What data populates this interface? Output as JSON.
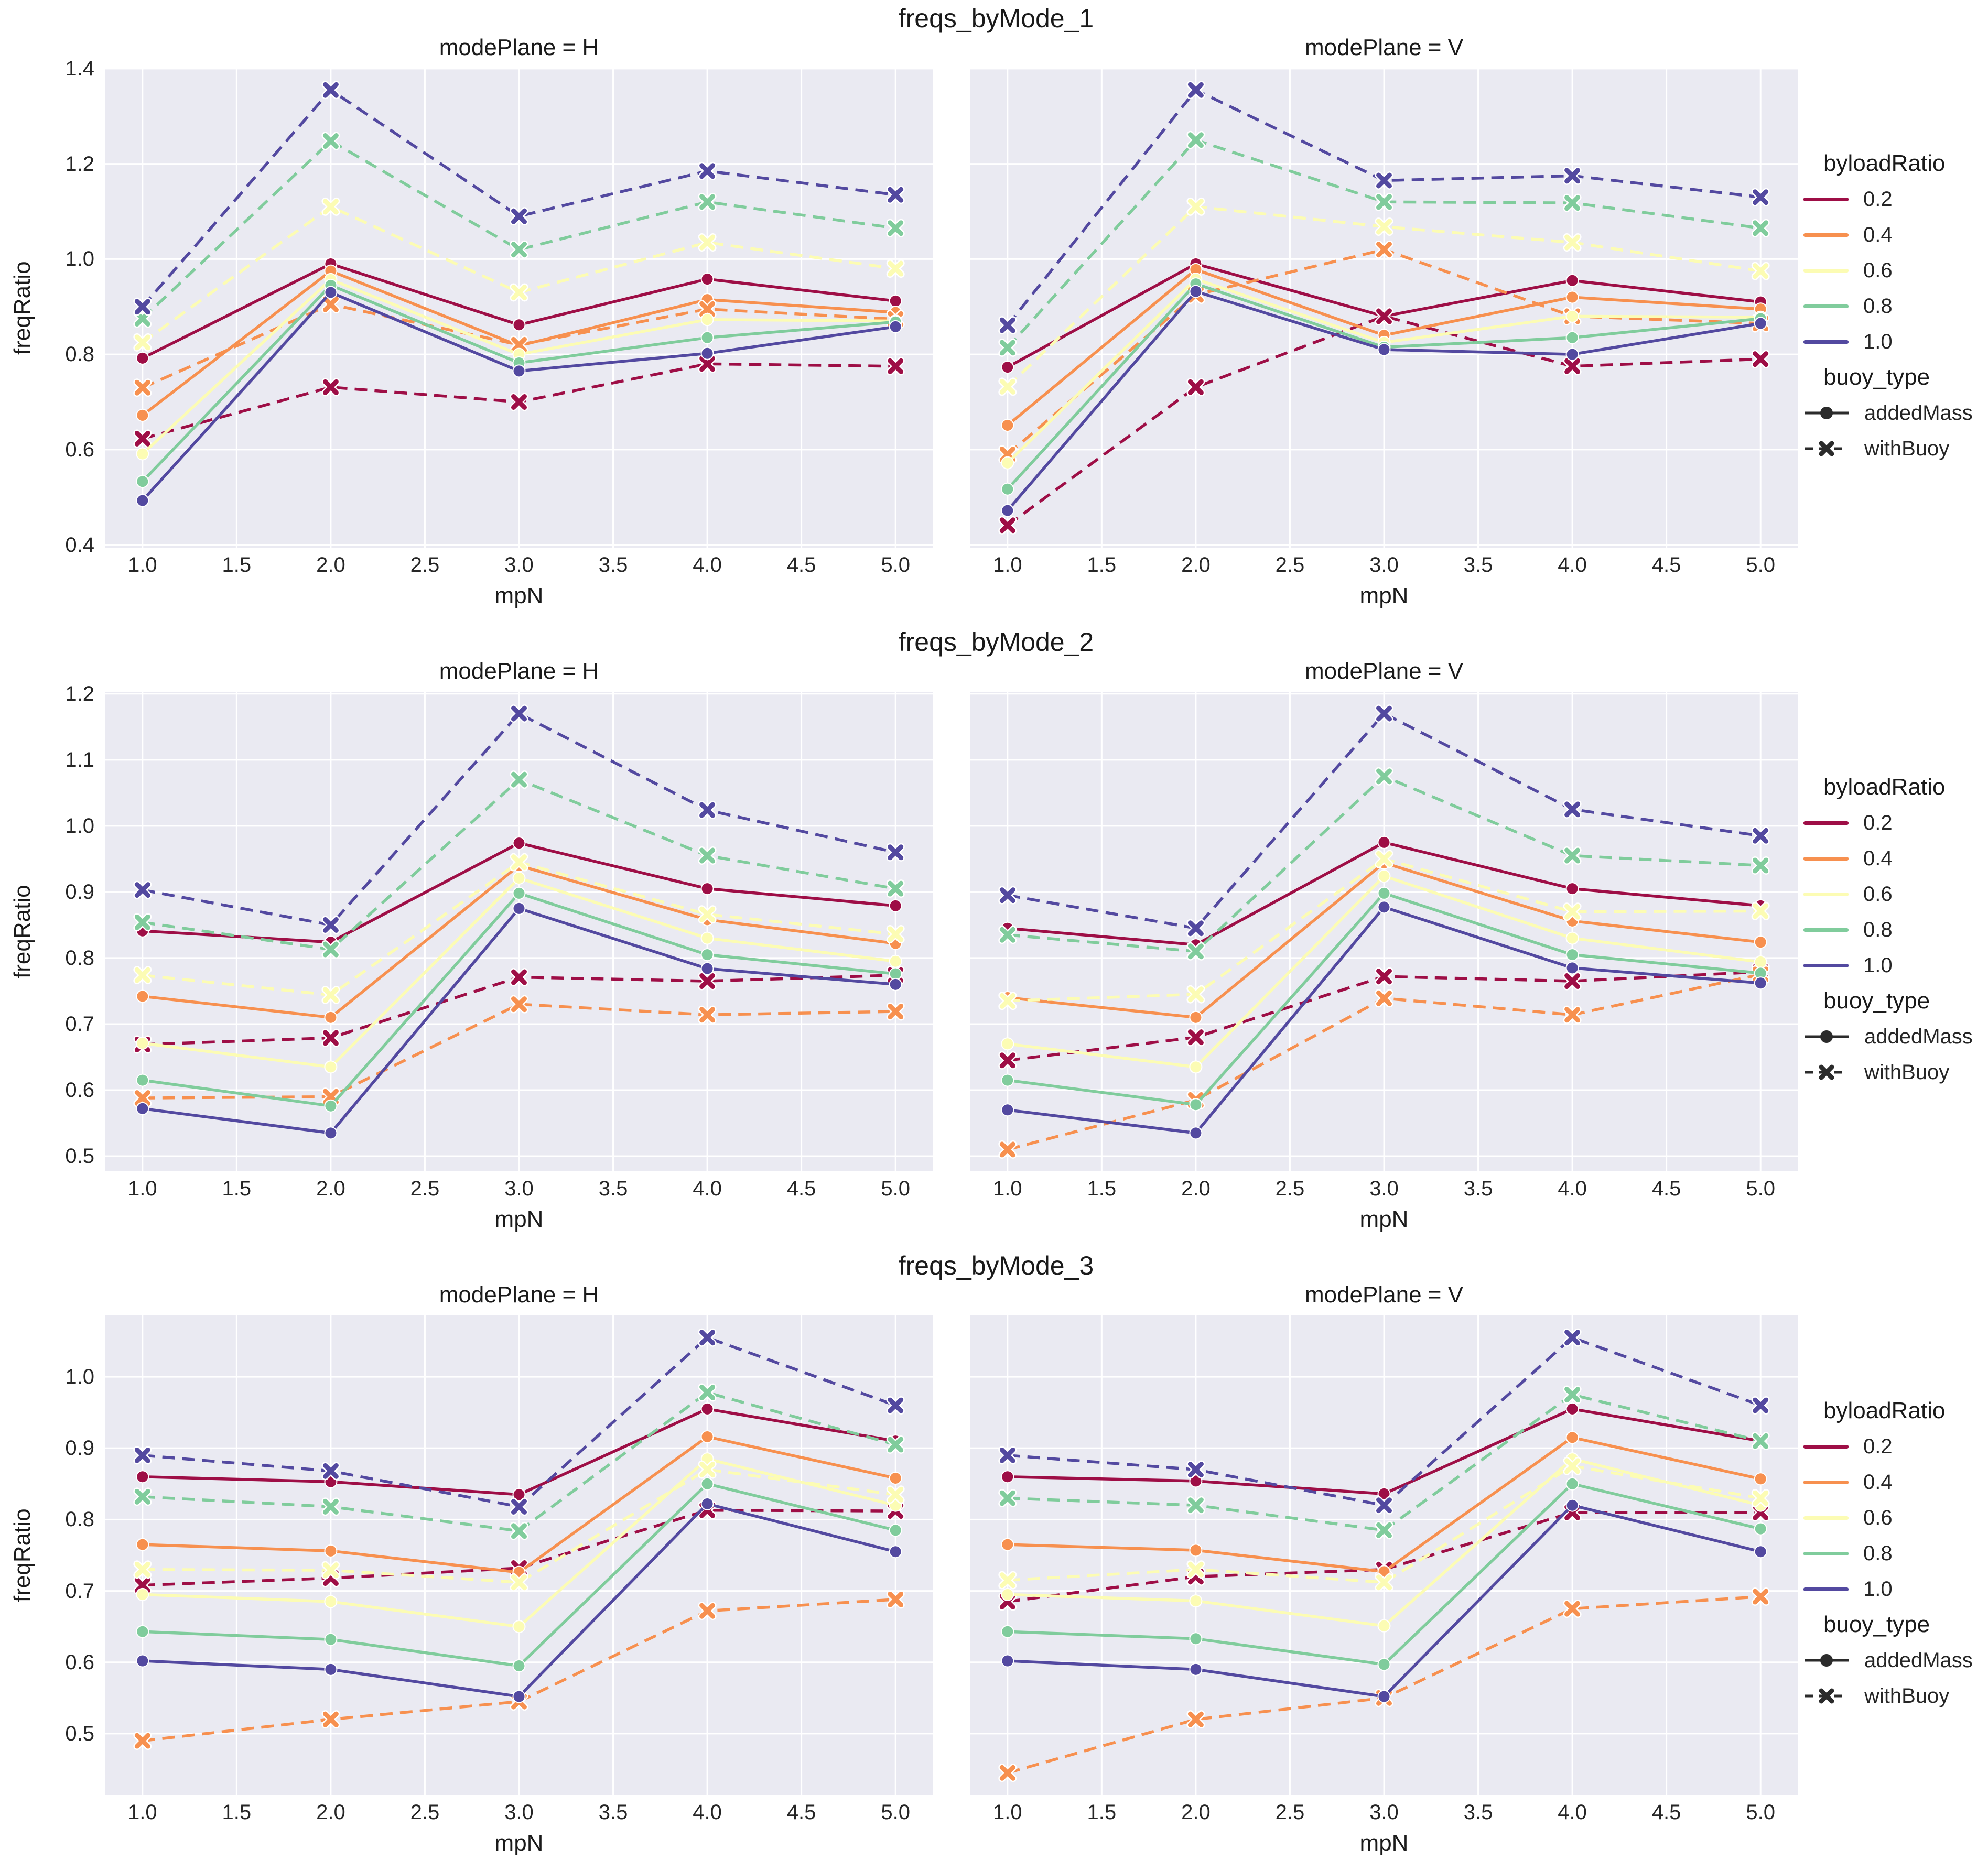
{
  "axes": {
    "xlabel": "mpN",
    "ylabel": "freqRatio"
  },
  "colors": {
    "0.2": "#9e0e46",
    "0.4": "#f7904f",
    "0.6": "#fcfcb4",
    "0.8": "#80cc9c",
    "1.0": "#5349a0",
    "plot_background": "#eaeaf2",
    "gridline": "#ffffff",
    "legend_line": "#2b2b2b",
    "text": "#262626"
  },
  "legend": {
    "ratio_title": "byloadRatio",
    "ratios": [
      {
        "label": "0.2",
        "color": "#9e0e46"
      },
      {
        "label": "0.4",
        "color": "#f7904f"
      },
      {
        "label": "0.6",
        "color": "#fcfcb4"
      },
      {
        "label": "0.8",
        "color": "#80cc9c"
      },
      {
        "label": "1.0",
        "color": "#5349a0"
      }
    ],
    "type_title": "buoy_type",
    "types": [
      {
        "label": "addedMass",
        "line": "solid",
        "marker": "circle"
      },
      {
        "label": "withBuoy",
        "line": "dashed",
        "marker": "x"
      }
    ]
  },
  "chart_data": [
    {
      "type": "line",
      "title": "freqs_byMode_1",
      "xlabel": "mpN",
      "ylabel": "freqRatio",
      "x": [
        1.0,
        2.0,
        3.0,
        4.0,
        5.0
      ],
      "xlim": [
        0.8,
        5.2
      ],
      "xticks": [
        1.0,
        1.5,
        2.0,
        2.5,
        3.0,
        3.5,
        4.0,
        4.5,
        5.0
      ],
      "ylim": [
        0.394,
        1.401
      ],
      "yticks": [
        0.4,
        0.6,
        0.8,
        1.0,
        1.2,
        1.4
      ],
      "grid": true,
      "facets": [
        {
          "label": "modePlane = H",
          "series": [
            {
              "byloadRatio": "0.2",
              "buoy_type": "addedMass",
              "values": [
                0.792,
                0.99,
                0.862,
                0.958,
                0.912
              ]
            },
            {
              "byloadRatio": "0.4",
              "buoy_type": "addedMass",
              "values": [
                0.672,
                0.975,
                0.818,
                0.915,
                0.888
              ]
            },
            {
              "byloadRatio": "0.6",
              "buoy_type": "addedMass",
              "values": [
                0.591,
                0.957,
                0.8,
                0.873,
                0.87
              ]
            },
            {
              "byloadRatio": "0.8",
              "buoy_type": "addedMass",
              "values": [
                0.533,
                0.945,
                0.782,
                0.835,
                0.868
              ]
            },
            {
              "byloadRatio": "1.0",
              "buoy_type": "addedMass",
              "values": [
                0.493,
                0.93,
                0.765,
                0.802,
                0.858
              ]
            },
            {
              "byloadRatio": "0.2",
              "buoy_type": "withBuoy",
              "values": [
                0.623,
                0.731,
                0.7,
                0.78,
                0.775
              ]
            },
            {
              "byloadRatio": "0.4",
              "buoy_type": "withBuoy",
              "values": [
                0.73,
                0.905,
                0.82,
                0.895,
                0.874
              ]
            },
            {
              "byloadRatio": "0.6",
              "buoy_type": "withBuoy",
              "values": [
                0.825,
                1.11,
                0.93,
                1.035,
                0.98
              ]
            },
            {
              "byloadRatio": "0.8",
              "buoy_type": "withBuoy",
              "values": [
                0.875,
                1.248,
                1.02,
                1.12,
                1.065
              ]
            },
            {
              "byloadRatio": "1.0",
              "buoy_type": "withBuoy",
              "values": [
                0.9,
                1.355,
                1.09,
                1.185,
                1.135
              ]
            }
          ]
        },
        {
          "label": "modePlane = V",
          "series": [
            {
              "byloadRatio": "0.2",
              "buoy_type": "addedMass",
              "values": [
                0.773,
                0.99,
                0.88,
                0.955,
                0.91
              ]
            },
            {
              "byloadRatio": "0.4",
              "buoy_type": "addedMass",
              "values": [
                0.651,
                0.978,
                0.84,
                0.92,
                0.895
              ]
            },
            {
              "byloadRatio": "0.6",
              "buoy_type": "addedMass",
              "values": [
                0.572,
                0.958,
                0.825,
                0.88,
                0.878
              ]
            },
            {
              "byloadRatio": "0.8",
              "buoy_type": "addedMass",
              "values": [
                0.517,
                0.948,
                0.815,
                0.835,
                0.875
              ]
            },
            {
              "byloadRatio": "1.0",
              "buoy_type": "addedMass",
              "values": [
                0.472,
                0.932,
                0.81,
                0.8,
                0.865
              ]
            },
            {
              "byloadRatio": "0.2",
              "buoy_type": "withBuoy",
              "values": [
                0.441,
                0.731,
                0.88,
                0.775,
                0.79
              ]
            },
            {
              "byloadRatio": "0.4",
              "buoy_type": "withBuoy",
              "values": [
                0.59,
                0.925,
                1.02,
                0.88,
                0.865
              ]
            },
            {
              "byloadRatio": "0.6",
              "buoy_type": "withBuoy",
              "values": [
                0.732,
                1.11,
                1.068,
                1.035,
                0.975
              ]
            },
            {
              "byloadRatio": "0.8",
              "buoy_type": "withBuoy",
              "values": [
                0.814,
                1.25,
                1.12,
                1.118,
                1.065
              ]
            },
            {
              "byloadRatio": "1.0",
              "buoy_type": "withBuoy",
              "values": [
                0.861,
                1.355,
                1.165,
                1.175,
                1.13
              ]
            }
          ]
        }
      ]
    },
    {
      "type": "line",
      "title": "freqs_byMode_2",
      "xlabel": "mpN",
      "ylabel": "freqRatio",
      "x": [
        1.0,
        2.0,
        3.0,
        4.0,
        5.0
      ],
      "xlim": [
        0.8,
        5.2
      ],
      "xticks": [
        1.0,
        1.5,
        2.0,
        2.5,
        3.0,
        3.5,
        4.0,
        4.5,
        5.0
      ],
      "ylim": [
        0.477,
        1.203
      ],
      "yticks": [
        0.5,
        0.6,
        0.7,
        0.8,
        0.9,
        1.0,
        1.1,
        1.2
      ],
      "grid": true,
      "facets": [
        {
          "label": "modePlane = H",
          "series": [
            {
              "byloadRatio": "0.2",
              "buoy_type": "addedMass",
              "values": [
                0.841,
                0.824,
                0.974,
                0.905,
                0.879
              ]
            },
            {
              "byloadRatio": "0.4",
              "buoy_type": "addedMass",
              "values": [
                0.742,
                0.71,
                0.94,
                0.858,
                0.822
              ]
            },
            {
              "byloadRatio": "0.6",
              "buoy_type": "addedMass",
              "values": [
                0.671,
                0.635,
                0.921,
                0.83,
                0.795
              ]
            },
            {
              "byloadRatio": "0.8",
              "buoy_type": "addedMass",
              "values": [
                0.615,
                0.576,
                0.898,
                0.805,
                0.776
              ]
            },
            {
              "byloadRatio": "1.0",
              "buoy_type": "addedMass",
              "values": [
                0.572,
                0.535,
                0.875,
                0.784,
                0.76
              ]
            },
            {
              "byloadRatio": "0.2",
              "buoy_type": "withBuoy",
              "values": [
                0.669,
                0.679,
                0.771,
                0.765,
                0.774
              ]
            },
            {
              "byloadRatio": "0.4",
              "buoy_type": "withBuoy",
              "values": [
                0.588,
                0.59,
                0.73,
                0.714,
                0.719
              ]
            },
            {
              "byloadRatio": "0.6",
              "buoy_type": "withBuoy",
              "values": [
                0.774,
                0.744,
                0.945,
                0.866,
                0.836
              ]
            },
            {
              "byloadRatio": "0.8",
              "buoy_type": "withBuoy",
              "values": [
                0.854,
                0.813,
                1.07,
                0.955,
                0.905
              ]
            },
            {
              "byloadRatio": "1.0",
              "buoy_type": "withBuoy",
              "values": [
                0.903,
                0.85,
                1.17,
                1.024,
                0.96
              ]
            }
          ]
        },
        {
          "label": "modePlane = V",
          "series": [
            {
              "byloadRatio": "0.2",
              "buoy_type": "addedMass",
              "values": [
                0.845,
                0.82,
                0.975,
                0.905,
                0.879
              ]
            },
            {
              "byloadRatio": "0.4",
              "buoy_type": "addedMass",
              "values": [
                0.74,
                0.71,
                0.944,
                0.856,
                0.824
              ]
            },
            {
              "byloadRatio": "0.6",
              "buoy_type": "addedMass",
              "values": [
                0.67,
                0.635,
                0.924,
                0.83,
                0.794
              ]
            },
            {
              "byloadRatio": "0.8",
              "buoy_type": "addedMass",
              "values": [
                0.615,
                0.578,
                0.898,
                0.805,
                0.777
              ]
            },
            {
              "byloadRatio": "1.0",
              "buoy_type": "addedMass",
              "values": [
                0.57,
                0.535,
                0.877,
                0.785,
                0.762
              ]
            },
            {
              "byloadRatio": "0.2",
              "buoy_type": "withBuoy",
              "values": [
                0.645,
                0.68,
                0.772,
                0.765,
                0.779
              ]
            },
            {
              "byloadRatio": "0.4",
              "buoy_type": "withBuoy",
              "values": [
                0.51,
                0.585,
                0.739,
                0.714,
                0.775
              ]
            },
            {
              "byloadRatio": "0.6",
              "buoy_type": "withBuoy",
              "values": [
                0.735,
                0.745,
                0.95,
                0.87,
                0.871
              ]
            },
            {
              "byloadRatio": "0.8",
              "buoy_type": "withBuoy",
              "values": [
                0.835,
                0.81,
                1.075,
                0.955,
                0.94
              ]
            },
            {
              "byloadRatio": "1.0",
              "buoy_type": "withBuoy",
              "values": [
                0.895,
                0.845,
                1.17,
                1.025,
                0.985
              ]
            }
          ]
        }
      ]
    },
    {
      "type": "line",
      "title": "freqs_byMode_3",
      "xlabel": "mpN",
      "ylabel": "freqRatio",
      "x": [
        1.0,
        2.0,
        3.0,
        4.0,
        5.0
      ],
      "xlim": [
        0.8,
        5.2
      ],
      "xticks": [
        1.0,
        1.5,
        2.0,
        2.5,
        3.0,
        3.5,
        4.0,
        4.5,
        5.0
      ],
      "ylim": [
        0.414,
        1.086
      ],
      "yticks": [
        0.5,
        0.6,
        0.7,
        0.8,
        0.9,
        1.0
      ],
      "grid": true,
      "facets": [
        {
          "label": "modePlane = H",
          "series": [
            {
              "byloadRatio": "0.2",
              "buoy_type": "addedMass",
              "values": [
                0.86,
                0.853,
                0.835,
                0.955,
                0.91
              ]
            },
            {
              "byloadRatio": "0.4",
              "buoy_type": "addedMass",
              "values": [
                0.765,
                0.756,
                0.726,
                0.916,
                0.858
              ]
            },
            {
              "byloadRatio": "0.6",
              "buoy_type": "addedMass",
              "values": [
                0.695,
                0.685,
                0.65,
                0.885,
                0.82
              ]
            },
            {
              "byloadRatio": "0.8",
              "buoy_type": "addedMass",
              "values": [
                0.643,
                0.632,
                0.595,
                0.85,
                0.785
              ]
            },
            {
              "byloadRatio": "1.0",
              "buoy_type": "addedMass",
              "values": [
                0.602,
                0.59,
                0.552,
                0.822,
                0.755
              ]
            },
            {
              "byloadRatio": "0.2",
              "buoy_type": "withBuoy",
              "values": [
                0.708,
                0.718,
                0.732,
                0.813,
                0.812
              ]
            },
            {
              "byloadRatio": "0.4",
              "buoy_type": "withBuoy",
              "values": [
                0.49,
                0.52,
                0.545,
                0.672,
                0.688
              ]
            },
            {
              "byloadRatio": "0.6",
              "buoy_type": "withBuoy",
              "values": [
                0.73,
                0.729,
                0.712,
                0.87,
                0.835
              ]
            },
            {
              "byloadRatio": "0.8",
              "buoy_type": "withBuoy",
              "values": [
                0.832,
                0.818,
                0.784,
                0.978,
                0.905
              ]
            },
            {
              "byloadRatio": "1.0",
              "buoy_type": "withBuoy",
              "values": [
                0.89,
                0.868,
                0.818,
                1.055,
                0.96
              ]
            }
          ]
        },
        {
          "label": "modePlane = V",
          "series": [
            {
              "byloadRatio": "0.2",
              "buoy_type": "addedMass",
              "values": [
                0.86,
                0.854,
                0.836,
                0.955,
                0.91
              ]
            },
            {
              "byloadRatio": "0.4",
              "buoy_type": "addedMass",
              "values": [
                0.765,
                0.757,
                0.727,
                0.915,
                0.857
              ]
            },
            {
              "byloadRatio": "0.6",
              "buoy_type": "addedMass",
              "values": [
                0.695,
                0.686,
                0.651,
                0.885,
                0.82
              ]
            },
            {
              "byloadRatio": "0.8",
              "buoy_type": "addedMass",
              "values": [
                0.643,
                0.633,
                0.597,
                0.85,
                0.787
              ]
            },
            {
              "byloadRatio": "1.0",
              "buoy_type": "addedMass",
              "values": [
                0.602,
                0.59,
                0.552,
                0.82,
                0.755
              ]
            },
            {
              "byloadRatio": "0.2",
              "buoy_type": "withBuoy",
              "values": [
                0.685,
                0.72,
                0.73,
                0.81,
                0.81
              ]
            },
            {
              "byloadRatio": "0.4",
              "buoy_type": "withBuoy",
              "values": [
                0.445,
                0.52,
                0.55,
                0.675,
                0.692
              ]
            },
            {
              "byloadRatio": "0.6",
              "buoy_type": "withBuoy",
              "values": [
                0.715,
                0.73,
                0.712,
                0.875,
                0.83
              ]
            },
            {
              "byloadRatio": "0.8",
              "buoy_type": "withBuoy",
              "values": [
                0.83,
                0.82,
                0.785,
                0.975,
                0.91
              ]
            },
            {
              "byloadRatio": "1.0",
              "buoy_type": "withBuoy",
              "values": [
                0.89,
                0.87,
                0.82,
                1.055,
                0.96
              ]
            }
          ]
        }
      ]
    }
  ]
}
